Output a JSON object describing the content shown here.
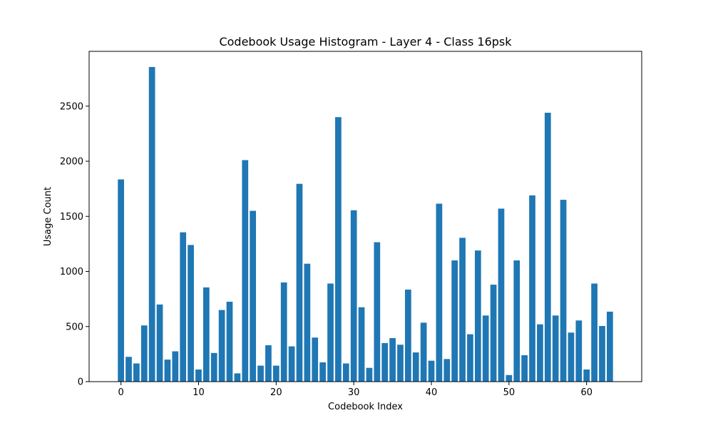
{
  "chart_data": {
    "type": "bar",
    "title": "Codebook Usage Histogram - Layer 4 - Class 16psk",
    "xlabel": "Codebook Index",
    "ylabel": "Usage Count",
    "x": [
      0,
      1,
      2,
      3,
      4,
      5,
      6,
      7,
      8,
      9,
      10,
      11,
      12,
      13,
      14,
      15,
      16,
      17,
      18,
      19,
      20,
      21,
      22,
      23,
      24,
      25,
      26,
      27,
      28,
      29,
      30,
      31,
      32,
      33,
      34,
      35,
      36,
      37,
      38,
      39,
      40,
      41,
      42,
      43,
      44,
      45,
      46,
      47,
      48,
      49,
      50,
      51,
      52,
      53,
      54,
      55,
      56,
      57,
      58,
      59,
      60,
      61,
      62,
      63
    ],
    "values": [
      1835,
      225,
      165,
      510,
      2855,
      700,
      200,
      275,
      1355,
      1240,
      110,
      855,
      260,
      650,
      725,
      75,
      2010,
      1550,
      145,
      330,
      145,
      900,
      320,
      1795,
      1070,
      400,
      175,
      890,
      2400,
      165,
      1555,
      675,
      125,
      1265,
      350,
      395,
      335,
      835,
      265,
      535,
      190,
      1615,
      205,
      1100,
      1305,
      430,
      1190,
      600,
      880,
      1570,
      60,
      1100,
      240,
      1690,
      520,
      2440,
      600,
      1650,
      445,
      555,
      110,
      890,
      505,
      635
    ],
    "xlim": [
      -4.1,
      67.1
    ],
    "ylim": [
      0,
      2997
    ],
    "x_ticks": [
      0,
      10,
      20,
      30,
      40,
      50,
      60
    ],
    "y_ticks": [
      0,
      500,
      1000,
      1500,
      2000,
      2500
    ],
    "bar_width": 0.8,
    "grid": false,
    "bar_color": "#1f77b4"
  }
}
